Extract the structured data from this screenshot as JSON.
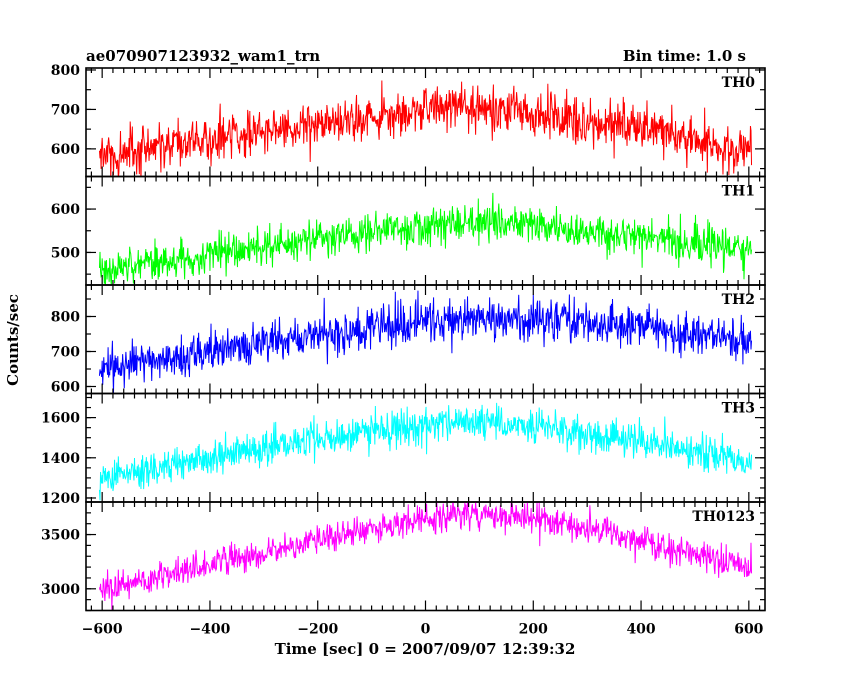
{
  "chart_data": {
    "type": "line",
    "title": "ae070907123932_wam1_trn",
    "subtitle": "Bin time: 1.0 s",
    "xlabel": "Time [sec] 0 = 2007/09/07 12:39:32",
    "ylabel": "Counts/sec",
    "xlim": [
      -630,
      630
    ],
    "xticks": [
      -600,
      -400,
      -200,
      0,
      200,
      400,
      600
    ],
    "x_range": [
      -605,
      605
    ],
    "bin_time_s": 1.0,
    "panels": [
      {
        "name": "TH0",
        "color": "#ff0000",
        "ylim": [
          530,
          805
        ],
        "yticks": [
          600,
          700,
          800
        ],
        "trend": [
          [
            -600,
            580
          ],
          [
            -400,
            625
          ],
          [
            -200,
            665
          ],
          [
            0,
            700
          ],
          [
            100,
            705
          ],
          [
            200,
            690
          ],
          [
            400,
            650
          ],
          [
            600,
            590
          ]
        ],
        "noise_sd": 28
      },
      {
        "name": "TH1",
        "color": "#00ff00",
        "ylim": [
          425,
          675
        ],
        "yticks": [
          500,
          600
        ],
        "trend": [
          [
            -600,
            460
          ],
          [
            -400,
            495
          ],
          [
            -200,
            530
          ],
          [
            0,
            560
          ],
          [
            100,
            570
          ],
          [
            200,
            560
          ],
          [
            400,
            535
          ],
          [
            600,
            505
          ]
        ],
        "noise_sd": 22
      },
      {
        "name": "TH2",
        "color": "#0000ff",
        "ylim": [
          580,
          890
        ],
        "yticks": [
          600,
          700,
          800
        ],
        "trend": [
          [
            -600,
            650
          ],
          [
            -400,
            700
          ],
          [
            -200,
            745
          ],
          [
            0,
            790
          ],
          [
            100,
            800
          ],
          [
            200,
            795
          ],
          [
            400,
            775
          ],
          [
            600,
            720
          ]
        ],
        "noise_sd": 30
      },
      {
        "name": "TH3",
        "color": "#00ffff",
        "ylim": [
          1180,
          1720
        ],
        "yticks": [
          1200,
          1400,
          1600
        ],
        "trend": [
          [
            -600,
            1300
          ],
          [
            -400,
            1400
          ],
          [
            -200,
            1500
          ],
          [
            0,
            1570
          ],
          [
            100,
            1580
          ],
          [
            200,
            1560
          ],
          [
            400,
            1480
          ],
          [
            600,
            1380
          ]
        ],
        "noise_sd": 45
      },
      {
        "name": "TH0123",
        "color": "#ff00ff",
        "ylim": [
          2800,
          3800
        ],
        "yticks": [
          3000,
          3500
        ],
        "trend": [
          [
            -600,
            3000
          ],
          [
            -400,
            3220
          ],
          [
            -200,
            3450
          ],
          [
            0,
            3650
          ],
          [
            100,
            3700
          ],
          [
            200,
            3650
          ],
          [
            400,
            3450
          ],
          [
            600,
            3200
          ]
        ],
        "noise_sd": 70
      }
    ]
  }
}
